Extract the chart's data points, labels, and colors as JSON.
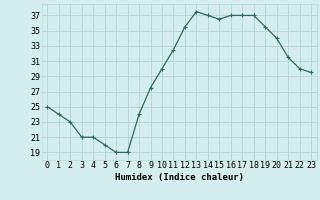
{
  "x": [
    0,
    1,
    2,
    3,
    4,
    5,
    6,
    7,
    8,
    9,
    10,
    11,
    12,
    13,
    14,
    15,
    16,
    17,
    18,
    19,
    20,
    21,
    22,
    23
  ],
  "y": [
    25,
    24,
    23,
    21,
    21,
    20,
    19,
    19,
    24,
    27.5,
    30,
    32.5,
    35.5,
    37.5,
    37,
    36.5,
    37,
    37,
    37,
    35.5,
    34,
    31.5,
    30,
    29.5
  ],
  "line_color": "#2e6b5e",
  "marker": "+",
  "marker_size": 3,
  "marker_lw": 0.8,
  "bg_color": "#d4eeee",
  "grid_color": "#b8d8d8",
  "xlabel": "Humidex (Indice chaleur)",
  "xlim": [
    -0.5,
    23.5
  ],
  "ylim": [
    18,
    38.5
  ],
  "yticks": [
    19,
    21,
    23,
    25,
    27,
    29,
    31,
    33,
    35,
    37
  ],
  "xticks": [
    0,
    1,
    2,
    3,
    4,
    5,
    6,
    7,
    8,
    9,
    10,
    11,
    12,
    13,
    14,
    15,
    16,
    17,
    18,
    19,
    20,
    21,
    22,
    23
  ],
  "label_fontsize": 6.5,
  "tick_fontsize": 6.0,
  "line_width": 0.9
}
